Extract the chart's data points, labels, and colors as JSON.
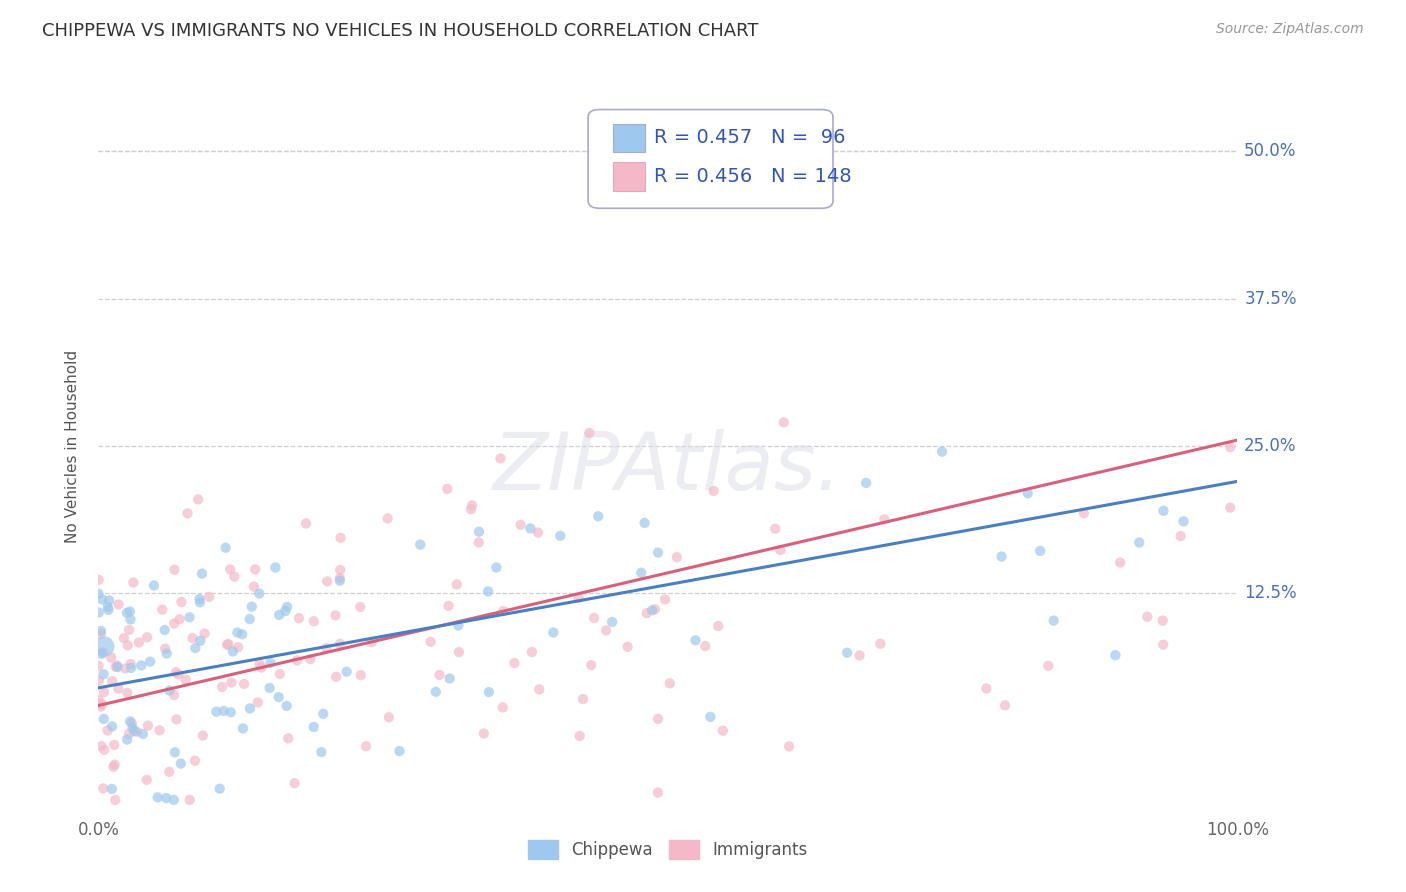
{
  "title": "CHIPPEWA VS IMMIGRANTS NO VEHICLES IN HOUSEHOLD CORRELATION CHART",
  "source": "Source: ZipAtlas.com",
  "ylabel": "No Vehicles in Household",
  "ytick_labels": [
    "12.5%",
    "25.0%",
    "37.5%",
    "50.0%"
  ],
  "ytick_values": [
    0.125,
    0.25,
    0.375,
    0.5
  ],
  "xlim": [
    0,
    1.0
  ],
  "ylim": [
    -0.06,
    0.56
  ],
  "chippewa_color": "#9ec8ed",
  "immigrants_color": "#f5b8c8",
  "chippewa_line_color": "#4a7fc1",
  "immigrants_line_color": "#d9607a",
  "chippewa_R": 0.457,
  "chippewa_N": 96,
  "immigrants_R": 0.456,
  "immigrants_N": 148,
  "legend_text_color": "#3355bb",
  "watermark_text": "ZIPAtlas.",
  "background_color": "#ffffff",
  "grid_color": "#d0d0d0",
  "title_fontsize": 13,
  "source_fontsize": 10,
  "axis_label_fontsize": 11,
  "tick_fontsize": 12,
  "legend_fontsize": 14,
  "scatter_alpha": 0.7,
  "scatter_size": 55,
  "chip_intercept": 0.045,
  "chip_slope": 0.175,
  "imm_intercept": 0.03,
  "imm_slope": 0.225
}
